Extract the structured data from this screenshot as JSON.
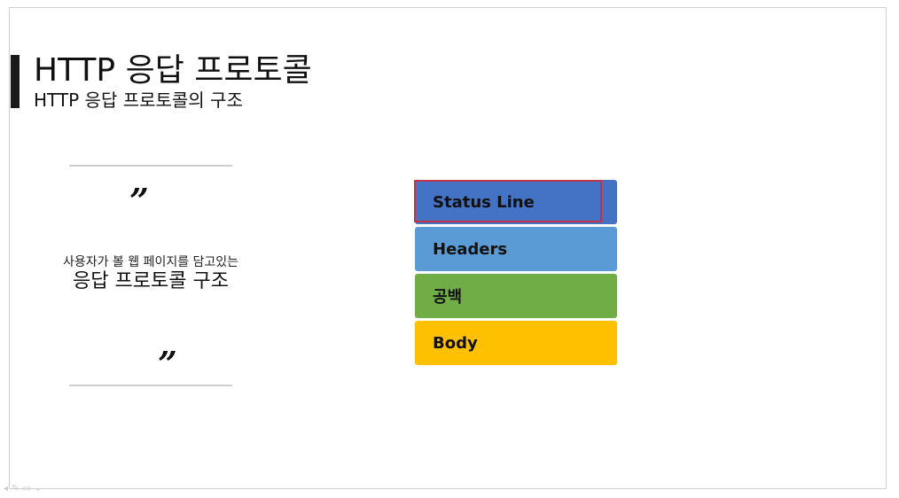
{
  "slide": {
    "title": "HTTP 응답 프로토콜",
    "subtitle": "HTTP 응답 프로토콜의 구조"
  },
  "quote": {
    "open_mark": "”",
    "close_mark": "”",
    "line_small": "사용자가 볼 웹 페이지를 담고있는",
    "line_large": "응답 프로토콜 구조"
  },
  "stack": [
    {
      "label": "Status Line",
      "color": "#4472c4",
      "highlighted": true
    },
    {
      "label": "Headers",
      "color": "#5b9bd5",
      "highlighted": false
    },
    {
      "label": "공백",
      "color": "#70ad47",
      "highlighted": false
    },
    {
      "label": "Body",
      "color": "#ffc000",
      "highlighted": false
    }
  ],
  "colors": {
    "highlight_border": "#c0344a",
    "accent_bar": "#1a1a1a"
  },
  "bottom_icons": [
    "arrow-icon",
    "pen-icon",
    "slide-icon",
    "chevron-down-icon"
  ]
}
